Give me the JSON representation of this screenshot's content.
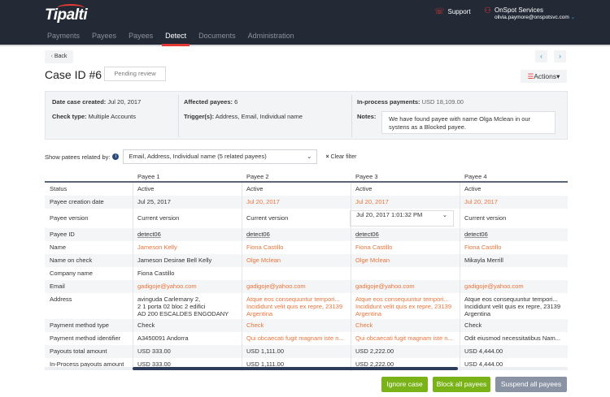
{
  "header": {
    "logo": "Tipalti",
    "support": "Support",
    "user_name": "OnSpot Services",
    "user_email": "olivia.paymore@onspotsvc.com",
    "nav": [
      {
        "label": "Payments"
      },
      {
        "label": "Payees"
      },
      {
        "label": "Payees"
      },
      {
        "label": "Detect",
        "active": true
      },
      {
        "label": "Documents"
      },
      {
        "label": "Administration"
      }
    ]
  },
  "page": {
    "back": "Back",
    "title": "Case ID #6",
    "status": "Pending review",
    "actions": "Actions"
  },
  "info": {
    "date_label": "Date case created:",
    "date": "Jul 20, 2017",
    "check_label": "Check type:",
    "check": "Multiple Accounts",
    "affected_label": "Affected payees:",
    "affected": "6",
    "trigger_label": "Trigger(s):",
    "trigger": "Address, Email, Individual name",
    "inprocess_label": "In-process payments:",
    "inprocess": "USD 18,109.00",
    "notes_label": "Notes:",
    "notes": "We have found payee with name Olga Mclean in our systens as a Blocked payee."
  },
  "filter": {
    "label": "Show patees related by:",
    "value": "Email, Address, Individual name (5 related payees)",
    "clear": "Clear filter"
  },
  "colors": {
    "header": "#232a36",
    "accent": "#e53935",
    "highlight": "#e8743b",
    "green": "#7ab317",
    "gray_button": "#8a93a3"
  },
  "table": {
    "columns": [
      "Payee 1",
      "Payee 2",
      "Payee 3",
      "Payee 4"
    ],
    "rows": [
      {
        "label": "Status",
        "cells": [
          {
            "v": "Active"
          },
          {
            "v": "Active"
          },
          {
            "v": "Active"
          },
          {
            "v": "Active"
          }
        ]
      },
      {
        "label": "Payee creation date",
        "cells": [
          {
            "v": "Jul 25, 2017"
          },
          {
            "v": "Jul 20, 2017",
            "hl": true
          },
          {
            "v": "Jul 20, 2017",
            "hl": true
          },
          {
            "v": "Jul 20, 2017",
            "hl": true
          }
        ]
      },
      {
        "label": "Payee version",
        "tall": true,
        "cells": [
          {
            "v": "Current version"
          },
          {
            "v": "Current version"
          },
          {
            "v": "Jul 20, 2017 1:01:32 PM",
            "select": true
          },
          {
            "v": "Current version"
          }
        ]
      },
      {
        "label": "Payee ID",
        "cells": [
          {
            "v": "detect06",
            "link": true
          },
          {
            "v": "detect06",
            "link": true
          },
          {
            "v": "detect06",
            "link": true
          },
          {
            "v": "detect06",
            "link": true
          }
        ]
      },
      {
        "label": "Name",
        "cells": [
          {
            "v": "Jameson Kelly",
            "hl": true
          },
          {
            "v": "Fiona Castillo",
            "hl": true
          },
          {
            "v": "Fiona Castillo",
            "hl": true
          },
          {
            "v": "Fiona Castillo",
            "hl": true
          }
        ]
      },
      {
        "label": "Name on check",
        "cells": [
          {
            "v": "Jameson Desirae Bell Kelly"
          },
          {
            "v": "Olge Mclean",
            "hl": true
          },
          {
            "v": "Olge Mclean",
            "hl": true
          },
          {
            "v": "Mikayla Merrill"
          }
        ]
      },
      {
        "label": "Company name",
        "cells": [
          {
            "v": "Fiona Castillo"
          },
          {
            "v": ""
          },
          {
            "v": ""
          },
          {
            "v": ""
          }
        ]
      },
      {
        "label": "Email",
        "cells": [
          {
            "v": "gadigoje@yahoo.com",
            "hl": true
          },
          {
            "v": "gadigoje@yahoo.com",
            "hl": true
          },
          {
            "v": "gadigoje@yahoo.com",
            "hl": true
          },
          {
            "v": "gadigoje@yahoo.com",
            "hl": true
          }
        ]
      },
      {
        "label": "Address",
        "address": true,
        "cells": [
          {
            "v": [
              "avinguda Carlemany 2,",
              "2 1 porta 02 bloc 2 edifici",
              "AD 200 ESCALDES ENGODANY"
            ]
          },
          {
            "v": [
              "Atque eos consequuntur tempori...",
              "Incididunt  velit quis ex repre, 23139",
              "Argentina"
            ],
            "hl": true
          },
          {
            "v": [
              "Atque eos consequuntur tempori...",
              "Incididunt  velit quis ex repre, 23139",
              "Argentina"
            ],
            "hl": true
          },
          {
            "v": [
              "Atque eos consequuntur tempori...",
              "Incididunt  velit quis ex repre, 23139",
              "Argentina"
            ]
          }
        ]
      },
      {
        "label": "Payment method type",
        "cells": [
          {
            "v": "Check"
          },
          {
            "v": "Check",
            "hl": true
          },
          {
            "v": "Check",
            "hl": true
          },
          {
            "v": "Check"
          }
        ]
      },
      {
        "label": "Payment method identifier",
        "cells": [
          {
            "v": "A3450091 Andorra"
          },
          {
            "v": "Qui obcaecati fugit magnam iste n...",
            "hl": true
          },
          {
            "v": "Qui obcaecati fugit magnam iste n...",
            "hl": true
          },
          {
            "v": "Odit eiusmod necessitatibus Nam..."
          }
        ]
      },
      {
        "label": "Payouts total amount",
        "cells": [
          {
            "v": "USD 333.00"
          },
          {
            "v": "USD 1,111.00"
          },
          {
            "v": "USD 2,222.00"
          },
          {
            "v": "USD 4,444.00"
          }
        ]
      },
      {
        "label": "In-Process payouts amount",
        "cells": [
          {
            "v": "USD 333.00"
          },
          {
            "v": "USD 1,111.00"
          },
          {
            "v": "USD 2,222.00"
          },
          {
            "v": "USD 4,444.00"
          }
        ]
      }
    ]
  },
  "buttons": {
    "ignore": "Ignore case",
    "block": "Block all payees",
    "suspend": "Suspend all payees"
  }
}
